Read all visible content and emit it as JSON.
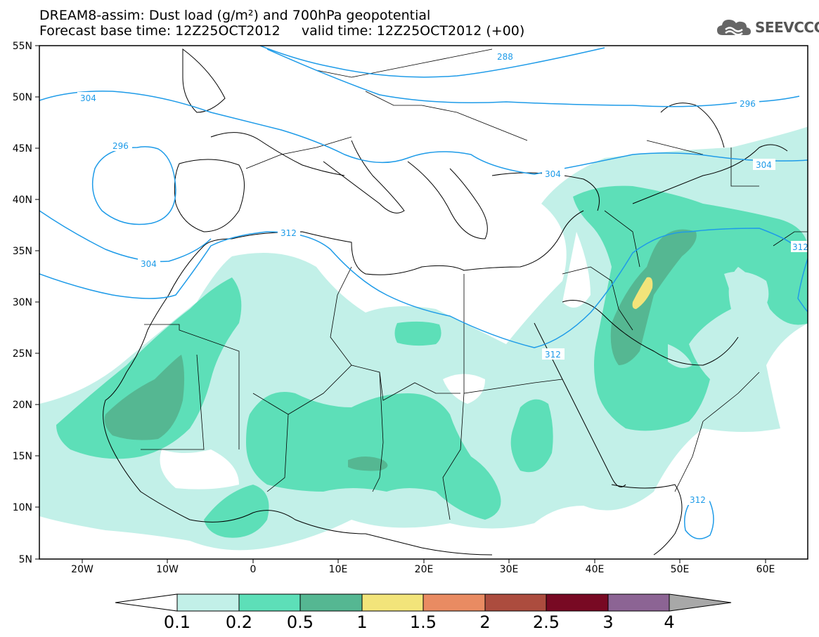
{
  "header": {
    "title_line1": "DREAM8-assim: Dust load (g/m²) and 700hPa geopotential",
    "title_line2": "Forecast base time: 12Z25OCT2012     valid time: 12Z25OCT2012 (+00)",
    "logo_text": "SEEVCCC"
  },
  "map": {
    "lat_labels": [
      "55N",
      "50N",
      "45N",
      "40N",
      "35N",
      "30N",
      "25N",
      "20N",
      "15N",
      "10N",
      "5N"
    ],
    "lon_labels": [
      "20W",
      "10W",
      "0",
      "10E",
      "20E",
      "30E",
      "40E",
      "50E",
      "60E"
    ],
    "contour_labels": {
      "c288": "288",
      "c296a": "296",
      "c296b": "296",
      "c304a": "304",
      "c304b": "304",
      "c304c": "304",
      "c304d": "304",
      "c312a": "312",
      "c312b": "312",
      "c312c": "312",
      "c312d": "312"
    },
    "colors": {
      "contour": "#1e9be8",
      "land": "#ffffff",
      "borders": "#000000"
    }
  },
  "colorbar": {
    "labels": [
      "0.1",
      "0.2",
      "0.5",
      "1",
      "1.5",
      "2",
      "2.5",
      "3",
      "4"
    ],
    "colors": [
      "#c2f0e8",
      "#5ddfb8",
      "#55b792",
      "#f2e47a",
      "#e98b62",
      "#ac4c3e",
      "#780923",
      "#8c6494",
      "#a8a8a8"
    ],
    "under_color": "#ffffff"
  }
}
